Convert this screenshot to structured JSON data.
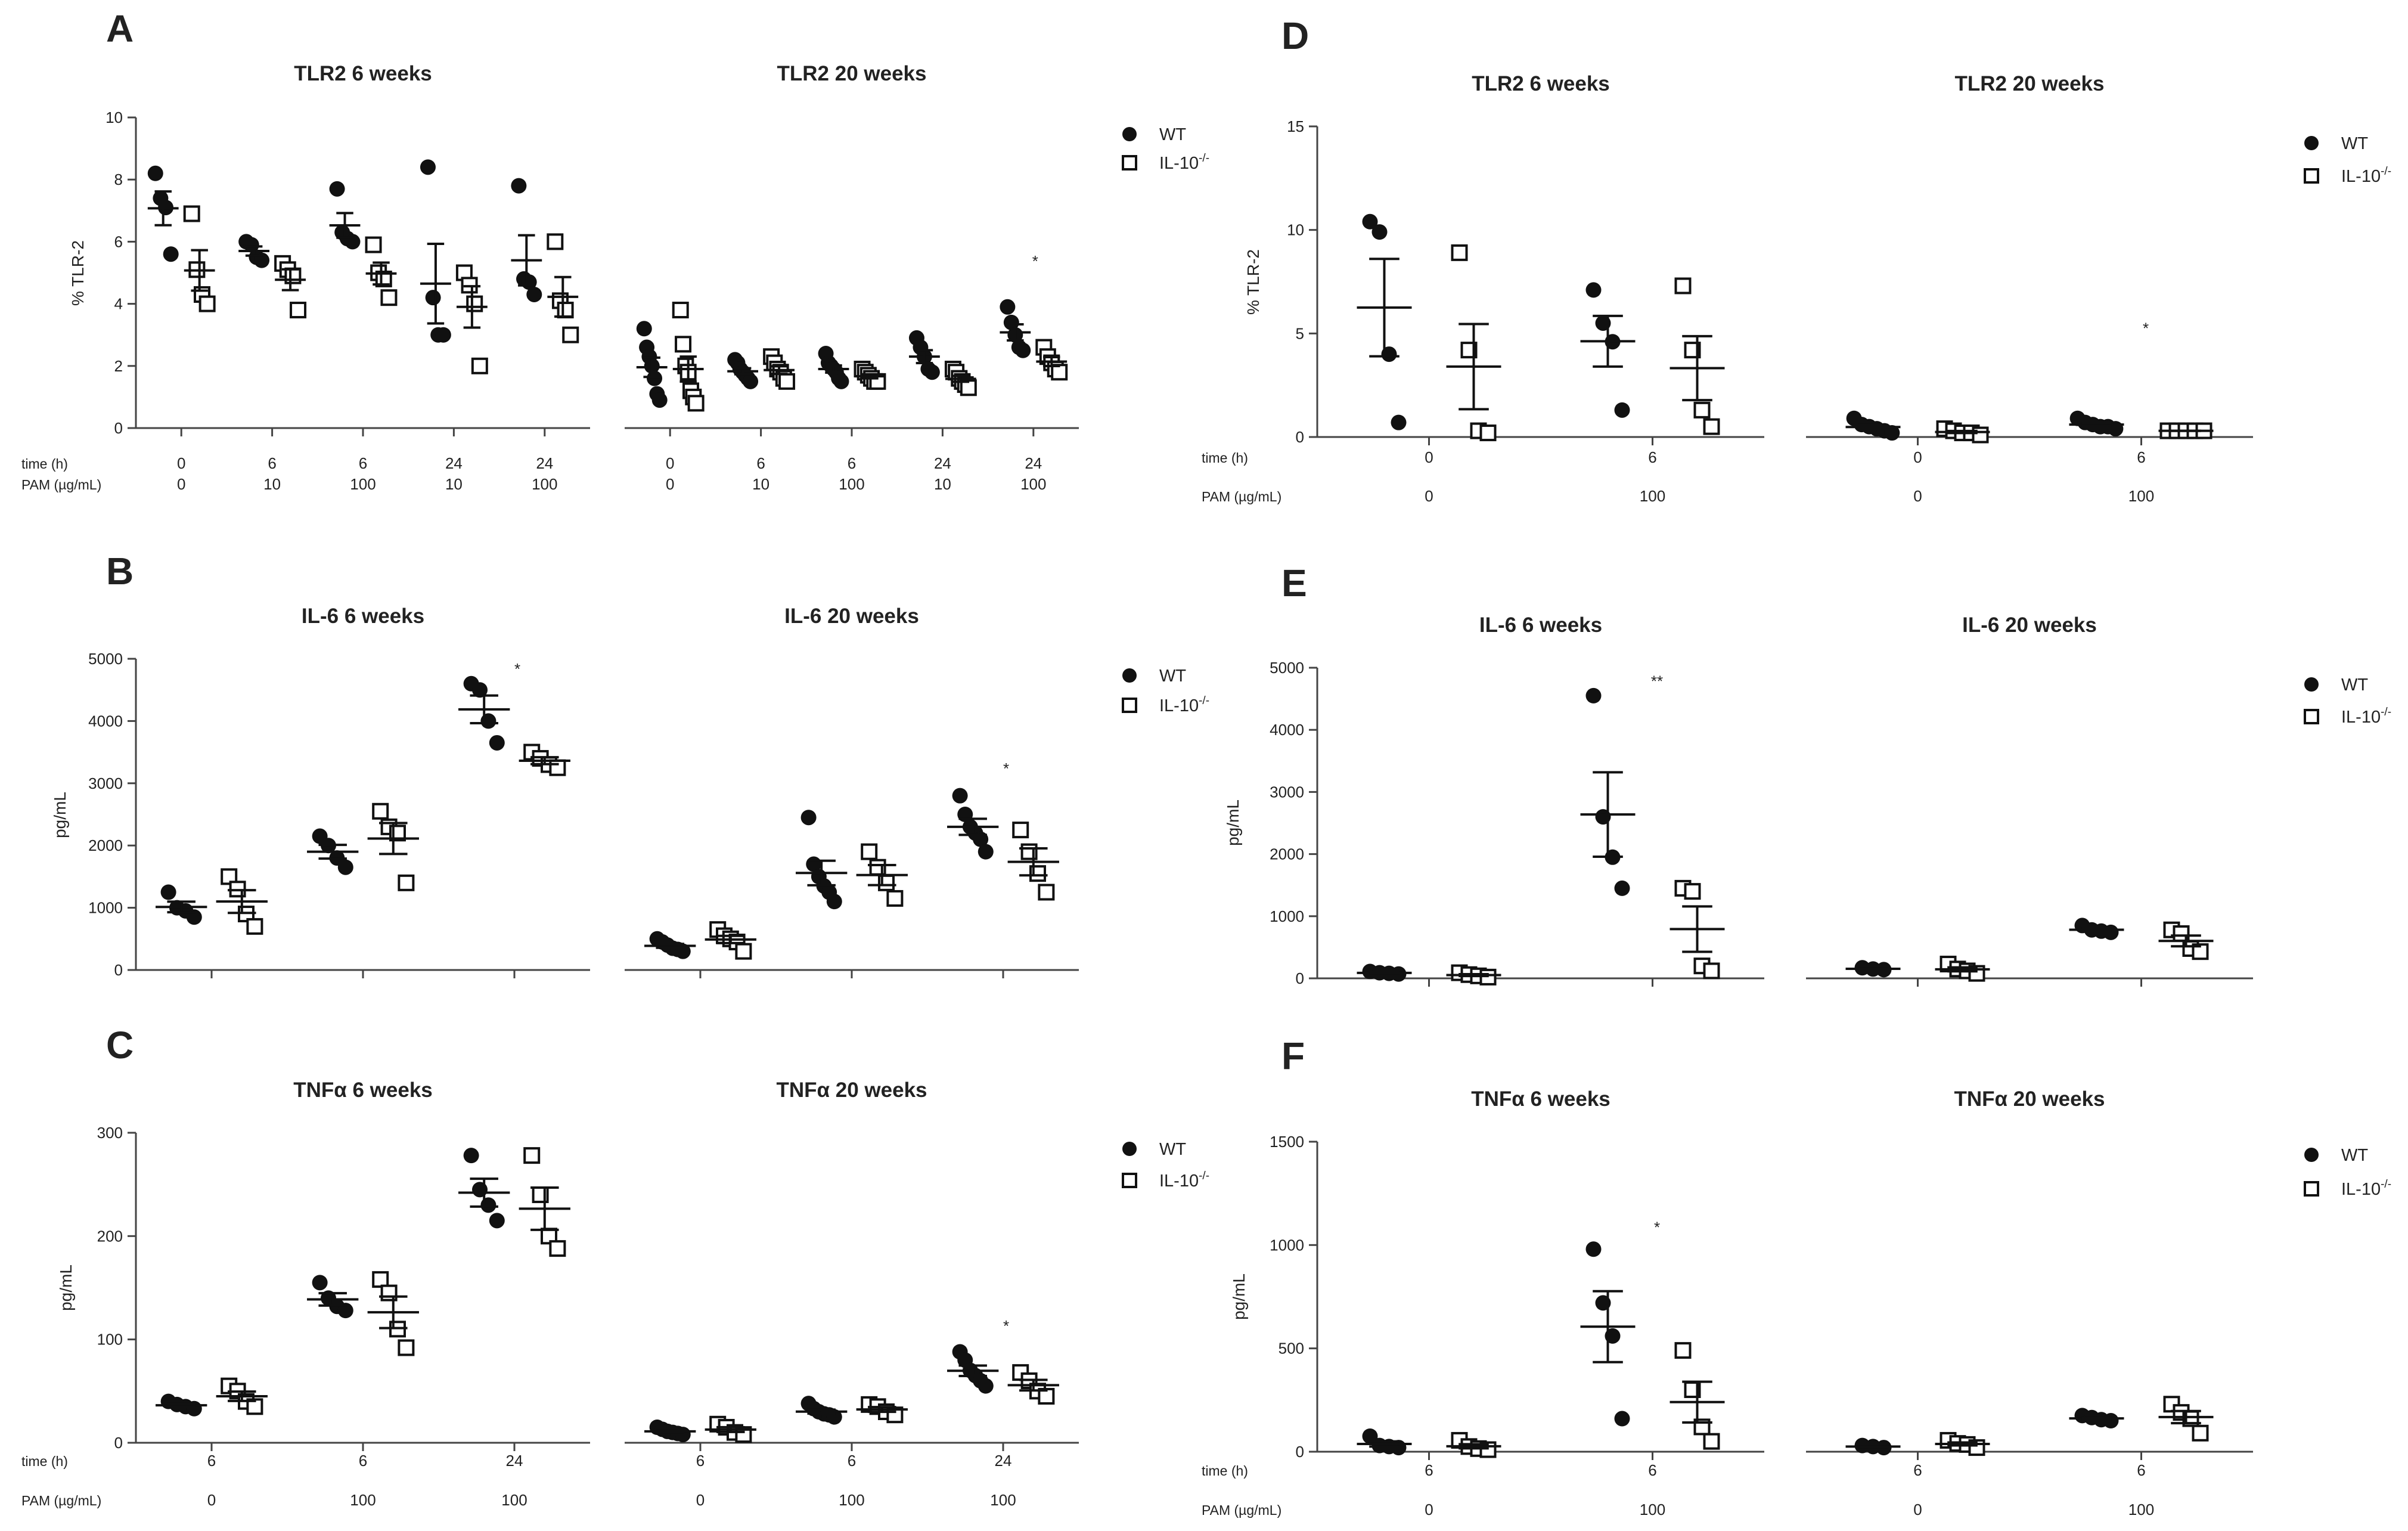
{
  "legend": {
    "wt": "WT",
    "ko": "IL-10",
    "ko_sup": "-/-"
  },
  "row_labels": {
    "time": "time (h)",
    "pam": "PAM (µg/mL)"
  },
  "colors": {
    "ink": "#111111",
    "axis": "#444444",
    "text": "#222222"
  },
  "chart_data": [
    {
      "id": "A",
      "type": "scatter",
      "letter": "A",
      "ylabel": "% TLR-2",
      "ylim": [
        0,
        10
      ],
      "yticks": [
        0,
        2,
        4,
        6,
        8,
        10
      ],
      "time": [
        "0",
        "6",
        "6",
        "24",
        "24"
      ],
      "pam": [
        "0",
        "10",
        "100",
        "10",
        "100"
      ],
      "panels": [
        {
          "title": "TLR2 6 weeks",
          "groups": [
            {
              "wt": [
                8.2,
                7.4,
                7.1,
                5.6
              ],
              "ko": [
                6.9,
                5.1,
                4.3,
                4.0
              ]
            },
            {
              "wt": [
                6.0,
                5.9,
                5.5,
                5.4
              ],
              "ko": [
                5.3,
                5.1,
                4.9,
                3.8
              ]
            },
            {
              "wt": [
                7.7,
                6.3,
                6.1,
                6.0
              ],
              "ko": [
                5.9,
                5.0,
                4.8,
                4.2
              ]
            },
            {
              "wt": [
                8.4,
                4.2,
                3.0,
                3.0
              ],
              "ko": [
                5.0,
                4.6,
                4.0,
                2.0
              ]
            },
            {
              "wt": [
                7.8,
                4.8,
                4.7,
                4.3
              ],
              "ko": [
                6.0,
                4.1,
                3.8,
                3.0
              ]
            }
          ]
        },
        {
          "title": "TLR2 20 weeks",
          "groups": [
            {
              "wt": [
                3.2,
                2.6,
                2.3,
                2.0,
                1.6,
                1.1,
                0.9
              ],
              "ko": [
                3.8,
                2.7,
                2.0,
                1.8,
                1.2,
                1.0,
                0.8
              ]
            },
            {
              "wt": [
                2.2,
                2.1,
                1.9,
                1.8,
                1.7,
                1.6,
                1.5
              ],
              "ko": [
                2.3,
                2.1,
                1.9,
                1.8,
                1.6,
                1.5
              ]
            },
            {
              "wt": [
                2.4,
                2.1,
                2.0,
                1.9,
                1.8,
                1.6,
                1.5
              ],
              "ko": [
                1.9,
                1.8,
                1.7,
                1.6,
                1.5,
                1.5
              ]
            },
            {
              "wt": [
                2.9,
                2.6,
                2.3,
                1.9,
                1.8
              ],
              "ko": [
                1.9,
                1.8,
                1.6,
                1.5,
                1.4,
                1.3
              ]
            },
            {
              "wt": [
                3.9,
                3.4,
                3.0,
                2.6,
                2.5
              ],
              "ko": [
                2.6,
                2.3,
                2.1,
                1.9,
                1.8
              ]
            }
          ],
          "annotations": [
            {
              "group": 4,
              "text": "*",
              "value": 5.2
            }
          ]
        }
      ]
    },
    {
      "id": "B",
      "type": "scatter",
      "letter": "B",
      "ylabel": "pg/mL",
      "ylim": [
        0,
        5000
      ],
      "yticks": [
        0,
        1000,
        2000,
        3000,
        4000,
        5000
      ],
      "time": [],
      "pam": [],
      "panels": [
        {
          "title": "IL-6 6 weeks",
          "groups": [
            {
              "wt": [
                1250,
                1000,
                950,
                850
              ],
              "ko": [
                1500,
                1300,
                900,
                700
              ]
            },
            {
              "wt": [
                2150,
                2000,
                1800,
                1650
              ],
              "ko": [
                2550,
                2300,
                2200,
                1400
              ]
            },
            {
              "wt": [
                4600,
                4500,
                4000,
                3650
              ],
              "ko": [
                3500,
                3400,
                3300,
                3250
              ]
            }
          ],
          "annotations": [
            {
              "group": 2,
              "text": "*",
              "value": 4750
            }
          ]
        },
        {
          "title": "IL-6 20 weeks",
          "groups": [
            {
              "wt": [
                500,
                450,
                400,
                350,
                330,
                300
              ],
              "ko": [
                650,
                550,
                500,
                450,
                300
              ]
            },
            {
              "wt": [
                2450,
                1700,
                1500,
                1350,
                1250,
                1100
              ],
              "ko": [
                1900,
                1650,
                1400,
                1150
              ]
            },
            {
              "wt": [
                2800,
                2500,
                2300,
                2200,
                2100,
                1900
              ],
              "ko": [
                2250,
                1900,
                1550,
                1250
              ]
            }
          ],
          "annotations": [
            {
              "group": 2,
              "text": "*",
              "value": 3150
            }
          ]
        }
      ]
    },
    {
      "id": "C",
      "type": "scatter",
      "letter": "C",
      "ylabel": "pg/mL",
      "ylim": [
        0,
        300
      ],
      "yticks": [
        0,
        100,
        200,
        300
      ],
      "time": [
        "6",
        "6",
        "24"
      ],
      "pam": [
        "0",
        "100",
        "100"
      ],
      "panels": [
        {
          "title": "TNFα 6 weeks",
          "groups": [
            {
              "wt": [
                40,
                37,
                35,
                33
              ],
              "ko": [
                55,
                50,
                40,
                35
              ]
            },
            {
              "wt": [
                155,
                140,
                132,
                128
              ],
              "ko": [
                158,
                145,
                110,
                92
              ]
            },
            {
              "wt": [
                278,
                245,
                230,
                215
              ],
              "ko": [
                278,
                240,
                200,
                188
              ]
            }
          ]
        },
        {
          "title": "TNFα 20 weeks",
          "groups": [
            {
              "wt": [
                15,
                13,
                11,
                10,
                9,
                8
              ],
              "ko": [
                18,
                15,
                10,
                8
              ]
            },
            {
              "wt": [
                38,
                33,
                30,
                28,
                27,
                25
              ],
              "ko": [
                37,
                35,
                30,
                27
              ]
            },
            {
              "wt": [
                88,
                80,
                70,
                65,
                60,
                55
              ],
              "ko": [
                68,
                60,
                50,
                45
              ]
            }
          ],
          "annotations": [
            {
              "group": 2,
              "text": "*",
              "value": 108
            }
          ]
        }
      ]
    },
    {
      "id": "D",
      "type": "scatter",
      "letter": "D",
      "ylabel": "% TLR-2",
      "ylim": [
        0,
        15
      ],
      "yticks": [
        0,
        5,
        10,
        15
      ],
      "time": [
        "0",
        "6"
      ],
      "pam": [
        "0",
        "100"
      ],
      "panels": [
        {
          "title": "TLR2 6 weeks",
          "groups": [
            {
              "wt": [
                10.4,
                9.9,
                4.0,
                0.7
              ],
              "ko": [
                8.9,
                4.2,
                0.3,
                0.2
              ]
            },
            {
              "wt": [
                7.1,
                5.5,
                4.6,
                1.3
              ],
              "ko": [
                7.3,
                4.2,
                1.3,
                0.5
              ]
            }
          ]
        },
        {
          "title": "TLR2 20 weeks",
          "groups": [
            {
              "wt": [
                0.9,
                0.6,
                0.5,
                0.4,
                0.3,
                0.2
              ],
              "ko": [
                0.4,
                0.3,
                0.2,
                0.2,
                0.1
              ]
            },
            {
              "wt": [
                0.9,
                0.7,
                0.6,
                0.5,
                0.5,
                0.4
              ],
              "ko": [
                0.3,
                0.3,
                0.3,
                0.3,
                0.3
              ]
            }
          ],
          "annotations": [
            {
              "group": 1,
              "text": "*",
              "value": 5.0
            }
          ]
        }
      ]
    },
    {
      "id": "E",
      "type": "scatter",
      "letter": "E",
      "ylabel": "pg/mL",
      "ylim": [
        0,
        5000
      ],
      "yticks": [
        0,
        1000,
        2000,
        3000,
        4000,
        5000
      ],
      "time": [],
      "pam": [],
      "panels": [
        {
          "title": "IL-6 6 weeks",
          "groups": [
            {
              "wt": [
                110,
                90,
                80,
                70
              ],
              "ko": [
                90,
                60,
                40,
                20
              ]
            },
            {
              "wt": [
                4550,
                2600,
                1950,
                1450
              ],
              "ko": [
                1450,
                1400,
                200,
                120
              ]
            }
          ],
          "annotations": [
            {
              "group": 1,
              "text": "**",
              "value": 4700
            }
          ]
        },
        {
          "title": "IL-6 20 weeks",
          "groups": [
            {
              "wt": [
                170,
                150,
                140
              ],
              "ko": [
                230,
                150,
                120,
                80
              ]
            },
            {
              "wt": [
                850,
                780,
                760,
                740
              ],
              "ko": [
                780,
                720,
                480,
                430
              ]
            }
          ]
        }
      ]
    },
    {
      "id": "F",
      "type": "scatter",
      "letter": "F",
      "ylabel": "pg/mL",
      "ylim": [
        0,
        1500
      ],
      "yticks": [
        0,
        500,
        1000,
        1500
      ],
      "time": [
        "6",
        "6"
      ],
      "pam": [
        "0",
        "100"
      ],
      "panels": [
        {
          "title": "TNFα 6 weeks",
          "groups": [
            {
              "wt": [
                75,
                30,
                25,
                20
              ],
              "ko": [
                55,
                25,
                15,
                10
              ]
            },
            {
              "wt": [
                980,
                720,
                560,
                160
              ],
              "ko": [
                490,
                300,
                120,
                50
              ]
            }
          ],
          "annotations": [
            {
              "group": 1,
              "text": "*",
              "value": 1060
            }
          ]
        },
        {
          "title": "TNFα 20 weeks",
          "groups": [
            {
              "wt": [
                30,
                25,
                20
              ],
              "ko": [
                55,
                40,
                35,
                20
              ]
            },
            {
              "wt": [
                175,
                165,
                155,
                150
              ],
              "ko": [
                230,
                190,
                160,
                90
              ]
            }
          ]
        }
      ]
    }
  ]
}
